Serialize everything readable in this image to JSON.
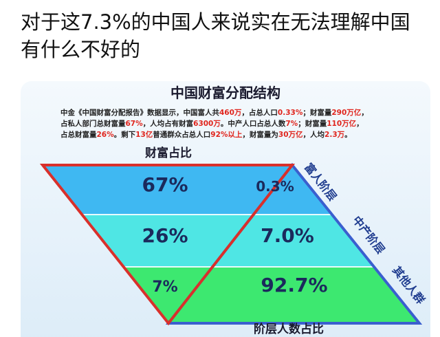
{
  "post": {
    "text_lines": [
      "对于这7.3%的中国人来说实在无法理解中国",
      "有什么不好的"
    ]
  },
  "infographic": {
    "title": "中国财富分配结构",
    "description_lines": [
      [
        "中金《中国财富分配报告》数据显示，中国富人共",
        "460万",
        "，占总人口",
        "0.33%",
        "；财富量",
        "290万亿",
        "，"
      ],
      [
        "占私人部门总财富量",
        "67%",
        "，人均占有财富",
        "6300万",
        "。中产人口占总人数",
        "7%",
        "；财富量",
        "110万亿",
        "，"
      ],
      [
        "占总财富量",
        "26%",
        "。剩下",
        "13亿",
        "普通群众占总人口",
        "92%以上",
        "，财富量为",
        "30万亿",
        "，人均",
        "2.3万",
        "。"
      ]
    ],
    "left_label": "财富占比",
    "bottom_label": "阶层人数占比",
    "wealth_share": [
      "67%",
      "26%",
      "7%"
    ],
    "population_share": [
      "0.3%",
      "7.0%",
      "92.7%"
    ],
    "tiers": [
      "富人阶层",
      "中产阶层",
      "其他人群"
    ]
  }
}
